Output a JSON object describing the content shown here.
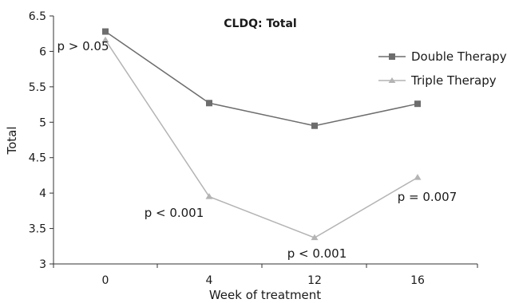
{
  "chart_data": {
    "type": "line",
    "title": "CLDQ: Total",
    "xlabel": "Week of treatment",
    "ylabel": "Total",
    "categories": [
      "0",
      "4",
      "12",
      "16"
    ],
    "ylim": [
      3,
      6.5
    ],
    "yticks": [
      "3",
      "3.5",
      "4",
      "4.5",
      "5",
      "5.5",
      "6",
      "6.5"
    ],
    "grid": false,
    "legend_position": "top-right",
    "series": [
      {
        "name": "Double Therapy",
        "values": [
          6.28,
          5.27,
          4.95,
          5.26
        ],
        "color": "#6d6d6d",
        "marker": "square"
      },
      {
        "name": "Triple Therapy",
        "values": [
          6.16,
          3.95,
          3.37,
          4.22
        ],
        "color": "#b4b4b4",
        "marker": "triangle"
      }
    ],
    "annotations": [
      {
        "text": "p > 0.05",
        "category_index": 0
      },
      {
        "text": "p < 0.001",
        "category_index": 1
      },
      {
        "text": "p < 0.001",
        "category_index": 2
      },
      {
        "text": "p = 0.007",
        "category_index": 3
      }
    ]
  }
}
